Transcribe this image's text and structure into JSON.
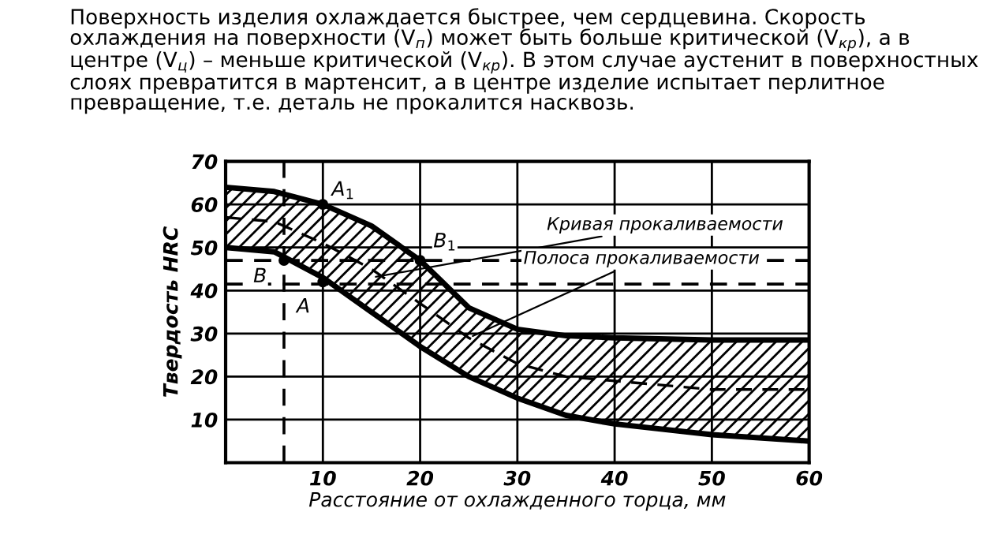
{
  "chart_data": {
    "type": "line",
    "title": "Поверхность изделия охлаждается быстрее, чем сердцевина. Скорость охлаждения на поверхности (V$_{п}$) может быть больше критической (V$_{кр}$), а в центре (V$_{ц}$) – меньше критической (V$_{кр}$). В этом случае аустенит в поверхностных слоях превратится в мартенсит, а в центре изделие испытает перлитное превращение, т.е. деталь не прокалится насквозь.",
    "xlabel": "Расстояние от охлажденного торца, мм",
    "ylabel": "Твердость HRC",
    "series": [
      {
        "color": "#000000",
        "line_style": "solid",
        "x": [
          0,
          5,
          10,
          15,
          20,
          25,
          30,
          35,
          40,
          50,
          60
        ],
        "values": [
          64,
          63,
          60,
          55,
          47,
          36,
          31,
          29.5,
          29,
          28.5,
          28.5
        ]
      },
      {
        "color": "#000000",
        "line_style": "solid",
        "x": [
          0,
          5,
          10,
          15,
          20,
          25,
          30,
          35,
          40,
          50,
          60
        ],
        "values": [
          50,
          49,
          43,
          35,
          27,
          20,
          15,
          11,
          9,
          6.5,
          5
        ]
      },
      {
        "color": "#000000",
        "line_style": "dashed",
        "x": [
          0,
          5,
          10,
          15,
          20,
          25,
          30,
          35,
          40,
          50,
          60
        ],
        "values": [
          57,
          56,
          51,
          45,
          37,
          29,
          23,
          20,
          19,
          17,
          17
        ],
        "upper": [
          64,
          63,
          60,
          55,
          47,
          36,
          31,
          29.5,
          29,
          28.5,
          28.5
        ],
        "lower": [
          50,
          49,
          43,
          35,
          27,
          20,
          15,
          11,
          9,
          6.5,
          5
        ]
      }
    ],
    "xlim": [
      0,
      60
    ],
    "ylim": [
      0,
      70
    ],
    "xticks": [
      {
        "value": 0,
        "label": null
      },
      10,
      20,
      30,
      40,
      50,
      60
    ],
    "yticks": [
      {
        "value": 0,
        "label": null
      },
      10,
      20,
      30,
      40,
      50,
      60,
      70
    ],
    "grid": true,
    "legend": false,
    "ref_lines": [
      {
        "axis": "x",
        "value": 6,
        "line_style": "dashed"
      },
      {
        "axis": "y",
        "value": 47,
        "line_style": "dashed"
      },
      {
        "axis": "y",
        "value": 41.5,
        "line_style": "dashed"
      }
    ],
    "annotations": [
      {
        "text": "A$_{1}$",
        "x": 10,
        "y": 60
      },
      {
        "text": "B$_{1}$",
        "x": 20,
        "y": 47
      },
      {
        "text": "A",
        "x": 10,
        "y": 42
      },
      {
        "text": "B",
        "x": 6,
        "y": 47
      },
      {
        "text": "Кривая прокаливаемости",
        "x": 15,
        "y": 43
      },
      {
        "text": "Полоса прокаливаемости",
        "x": 25,
        "y": 29
      }
    ]
  }
}
